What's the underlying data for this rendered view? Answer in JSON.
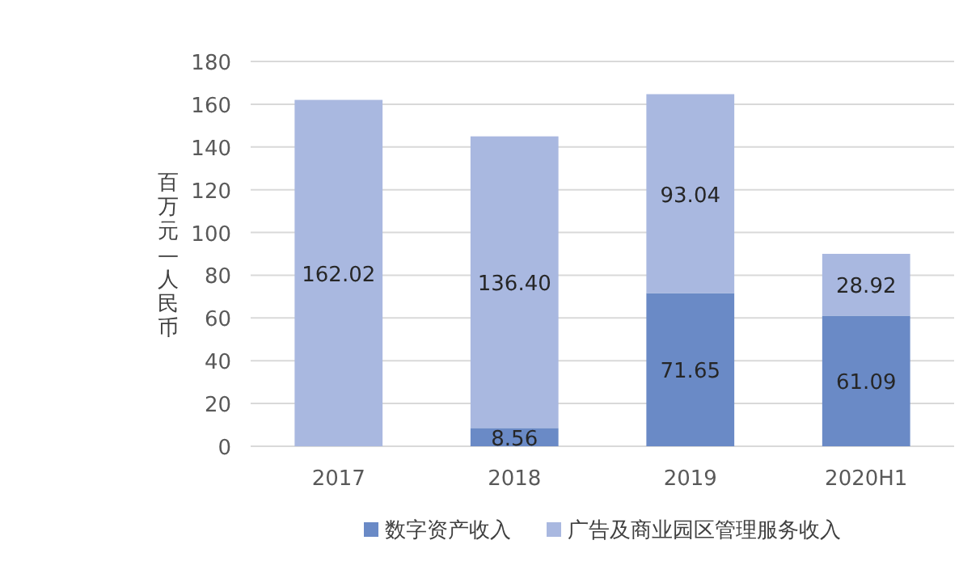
{
  "chart_data": {
    "type": "bar",
    "stacked": true,
    "ylabel": "百万元—人民币",
    "categories": [
      "2017",
      "2018",
      "2019",
      "2020H1"
    ],
    "series": [
      {
        "name": "数字资产收入",
        "color": "#6a8ac6",
        "values": [
          null,
          8.56,
          71.65,
          61.09
        ],
        "value_labels": [
          null,
          "8.56",
          "71.65",
          "61.09"
        ]
      },
      {
        "name": "广告及商业园区管理服务收入",
        "color": "#a9b8e0",
        "values": [
          162.02,
          136.4,
          93.04,
          28.92
        ],
        "value_labels": [
          "162.02",
          "136.40",
          "93.04",
          "28.92"
        ]
      }
    ],
    "ylim": [
      0,
      180
    ],
    "yticks": [
      0,
      20,
      40,
      60,
      80,
      100,
      120,
      140,
      160,
      180
    ],
    "grid": "y",
    "legend": "bottom"
  }
}
